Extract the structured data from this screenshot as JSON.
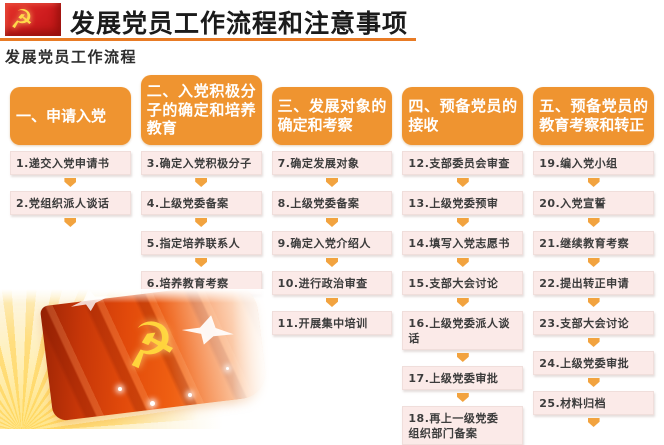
{
  "header": {
    "title": "发展党员工作流程和注意事项",
    "emblem_glyph": "☭",
    "emblem_name": "party-emblem"
  },
  "subtitle": "发展党员工作流程",
  "columns": [
    {
      "title": "一、申请入党",
      "steps": [
        "1.递交入党申请书",
        "2.党组织派人谈话"
      ],
      "trailing_arrow": true
    },
    {
      "title": "二、入党积极分子的确定和培养教育",
      "steps": [
        "3.确定入党积极分子",
        "4.上级党委备案",
        "5.指定培养联系人",
        "6.培养教育考察"
      ],
      "trailing_arrow": false
    },
    {
      "title": "三、发展对象的确定和考察",
      "steps": [
        "7.确定发展对象",
        "8.上级党委备案",
        "9.确定入党介绍人",
        "10.进行政治审查",
        "11.开展集中培训"
      ],
      "trailing_arrow": false
    },
    {
      "title": "四、预备党员的接收",
      "steps": [
        "12.支部委员会审查",
        "13.上级党委预审",
        "14.填写入党志愿书",
        "15.支部大会讨论",
        "16.上级党委派人谈话",
        "17.上级党委审批",
        "18.再上一级党委\n组织部门备案"
      ],
      "trailing_arrow": false
    },
    {
      "title": "五、预备党员的教育考察和转正",
      "steps": [
        "19.编入党小组",
        "20.入党宣誓",
        "21.继续教育考察",
        "22.提出转正申请",
        "23.支部大会讨论",
        "24.上级党委审批",
        "25.材料归档"
      ],
      "trailing_arrow": true
    }
  ],
  "flag_scene": {
    "hammer_sickle_glyph": "☭",
    "description": "party-flag-with-doves-and-light-rays"
  },
  "colors": {
    "orange": "#ef9430",
    "step_bg": "#fbeae8",
    "step_text": "#3c3c3c",
    "arrow": "#f2a33f",
    "underline": "#e87b25",
    "emblem_red": "#cf1d1f",
    "title_color": "#1b1b1b"
  }
}
